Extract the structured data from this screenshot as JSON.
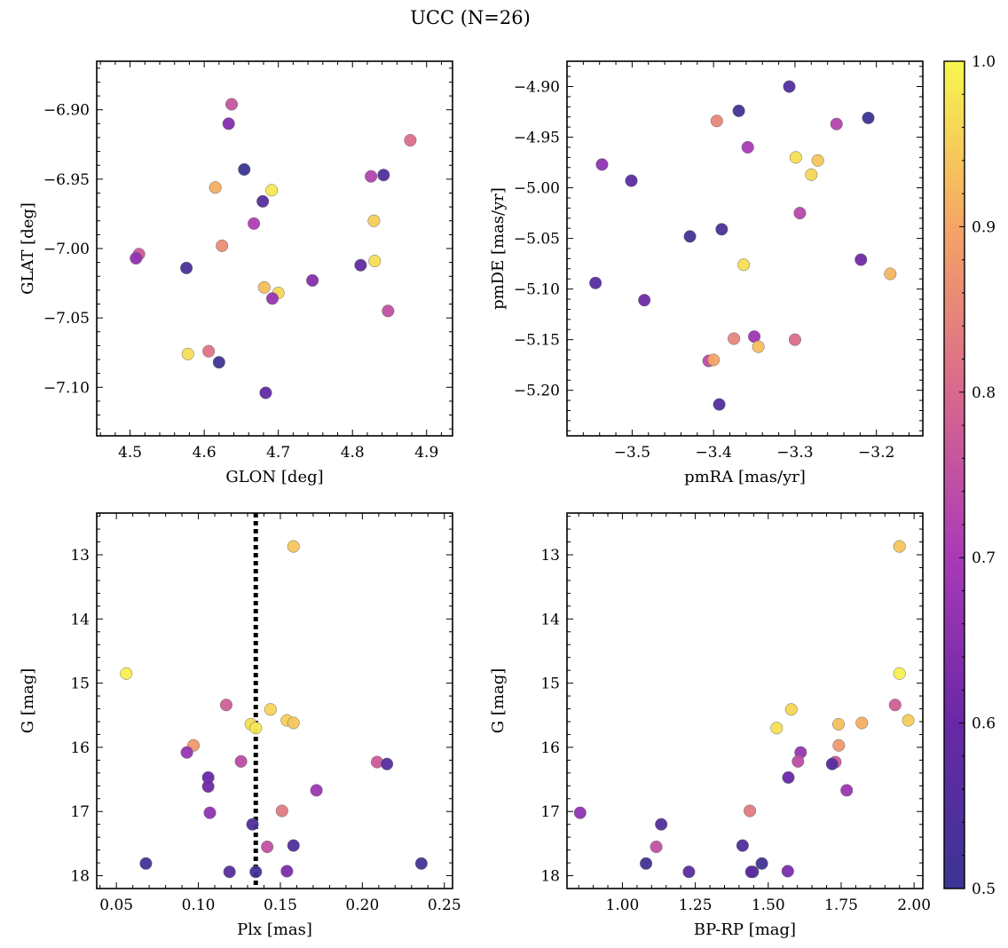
{
  "title": "UCC (N=26)",
  "colorbar": {
    "label": "",
    "range": [
      0.5,
      1.0
    ],
    "ticks": [
      "0.5",
      "0.6",
      "0.7",
      "0.8",
      "0.9",
      "1.0"
    ],
    "tick_values": [
      0.5,
      0.6,
      0.7,
      0.8,
      0.9,
      1.0
    ],
    "colormap": "plasma"
  },
  "chart_data": [
    {
      "type": "scatter",
      "title": "",
      "xlabel": "GLON [deg]",
      "ylabel": "GLAT [deg]",
      "xlim": [
        4.455,
        4.935
      ],
      "ylim": [
        -7.135,
        -6.865
      ],
      "y_inverted": false,
      "xticks": [
        4.5,
        4.6,
        4.7,
        4.8,
        4.9
      ],
      "xtick_labels": [
        "4.5",
        "4.6",
        "4.7",
        "4.8",
        "4.9"
      ],
      "yticks": [
        -6.9,
        -6.95,
        -7.0,
        -7.05,
        -7.1
      ],
      "ytick_labels": [
        "−6.90",
        "−6.95",
        "−7.00",
        "−7.05",
        "−7.10"
      ],
      "x": [
        4.637,
        4.633,
        4.878,
        4.654,
        4.842,
        4.825,
        4.615,
        4.691,
        4.679,
        4.667,
        4.829,
        4.624,
        4.512,
        4.508,
        4.576,
        4.83,
        4.811,
        4.746,
        4.681,
        4.7,
        4.692,
        4.848,
        4.606,
        4.578,
        4.62,
        4.683
      ],
      "y": [
        -6.896,
        -6.91,
        -6.922,
        -6.943,
        -6.947,
        -6.948,
        -6.956,
        -6.958,
        -6.966,
        -6.982,
        -6.98,
        -6.998,
        -7.004,
        -7.007,
        -7.014,
        -7.009,
        -7.012,
        -7.023,
        -7.028,
        -7.032,
        -7.036,
        -7.045,
        -7.074,
        -7.076,
        -7.082,
        -7.104
      ],
      "c": [
        0.76,
        0.64,
        0.81,
        0.5,
        0.55,
        0.72,
        0.91,
        0.98,
        0.56,
        0.71,
        0.95,
        0.86,
        0.77,
        0.66,
        0.53,
        0.97,
        0.58,
        0.64,
        0.93,
        0.96,
        0.67,
        0.75,
        0.82,
        0.97,
        0.51,
        0.59
      ]
    },
    {
      "type": "scatter",
      "title": "",
      "xlabel": "pmRA [mas/yr]",
      "ylabel": "pmDE [mas/yr]",
      "xlim": [
        -3.58,
        -3.143
      ],
      "ylim": [
        -5.245,
        -4.875
      ],
      "y_inverted": false,
      "xticks": [
        -3.5,
        -3.4,
        -3.3,
        -3.2
      ],
      "xtick_labels": [
        "−3.5",
        "−3.4",
        "−3.3",
        "−3.2"
      ],
      "yticks": [
        -4.9,
        -4.95,
        -5.0,
        -5.05,
        -5.1,
        -5.15,
        -5.2
      ],
      "ytick_labels": [
        "−4.90",
        "−4.95",
        "−5.00",
        "−5.05",
        "−5.10",
        "−5.15",
        "−5.20"
      ],
      "x": [
        -3.307,
        -3.369,
        -3.396,
        -3.21,
        -3.249,
        -3.358,
        -3.299,
        -3.272,
        -3.537,
        -3.28,
        -3.501,
        -3.294,
        -3.429,
        -3.39,
        -3.219,
        -3.363,
        -3.545,
        -3.183,
        -3.485,
        -3.375,
        -3.35,
        -3.3,
        -3.345,
        -3.406,
        -3.4,
        -3.393
      ],
      "y": [
        -4.9,
        -4.924,
        -4.934,
        -4.931,
        -4.937,
        -4.96,
        -4.97,
        -4.973,
        -4.977,
        -4.987,
        -4.993,
        -5.025,
        -5.048,
        -5.041,
        -5.071,
        -5.076,
        -5.094,
        -5.085,
        -5.111,
        -5.149,
        -5.147,
        -5.15,
        -5.157,
        -5.171,
        -5.17,
        -5.214
      ],
      "c": [
        0.55,
        0.51,
        0.85,
        0.5,
        0.72,
        0.7,
        0.97,
        0.94,
        0.66,
        0.96,
        0.57,
        0.73,
        0.51,
        0.53,
        0.61,
        0.97,
        0.56,
        0.92,
        0.61,
        0.85,
        0.68,
        0.81,
        0.93,
        0.74,
        0.9,
        0.55
      ]
    },
    {
      "type": "scatter",
      "title": "",
      "xlabel": "Plx [mas]",
      "ylabel": "G [mag]",
      "xlim": [
        0.038,
        0.255
      ],
      "ylim": [
        18.2,
        12.35
      ],
      "y_inverted": true,
      "vline": {
        "x": 0.135,
        "style": "dotted",
        "color": "#000000"
      },
      "xticks": [
        0.05,
        0.1,
        0.15,
        0.2,
        0.25
      ],
      "xtick_labels": [
        "0.05",
        "0.10",
        "0.15",
        "0.20",
        "0.25"
      ],
      "yticks": [
        13,
        14,
        15,
        16,
        17,
        18
      ],
      "ytick_labels": [
        "13",
        "14",
        "15",
        "16",
        "17",
        "18"
      ],
      "x": [
        0.158,
        0.056,
        0.117,
        0.144,
        0.132,
        0.135,
        0.154,
        0.158,
        0.097,
        0.093,
        0.126,
        0.209,
        0.215,
        0.106,
        0.172,
        0.106,
        0.151,
        0.107,
        0.133,
        0.142,
        0.158,
        0.068,
        0.236,
        0.119,
        0.135,
        0.154
      ],
      "y": [
        12.87,
        14.85,
        15.34,
        15.41,
        15.64,
        15.7,
        15.58,
        15.62,
        15.97,
        16.08,
        16.22,
        16.23,
        16.26,
        16.47,
        16.67,
        16.61,
        16.99,
        17.02,
        17.2,
        17.55,
        17.53,
        17.81,
        17.81,
        17.94,
        17.94,
        17.93
      ],
      "c": [
        0.94,
        0.99,
        0.78,
        0.96,
        0.97,
        0.98,
        0.95,
        0.94,
        0.88,
        0.67,
        0.74,
        0.77,
        0.56,
        0.6,
        0.68,
        0.61,
        0.83,
        0.66,
        0.55,
        0.75,
        0.54,
        0.51,
        0.52,
        0.56,
        0.51,
        0.63
      ]
    },
    {
      "type": "scatter",
      "title": "",
      "xlabel": "BP-RP [mag]",
      "ylabel": "G [mag]",
      "xlim": [
        0.81,
        2.03
      ],
      "ylim": [
        18.2,
        12.35
      ],
      "y_inverted": true,
      "xticks": [
        1.0,
        1.25,
        1.5,
        1.75,
        2.0
      ],
      "xtick_labels": [
        "1.00",
        "1.25",
        "1.50",
        "1.75",
        "2.00"
      ],
      "yticks": [
        13,
        14,
        15,
        16,
        17,
        18
      ],
      "ytick_labels": [
        "13",
        "14",
        "15",
        "16",
        "17",
        "18"
      ],
      "x": [
        1.95,
        1.95,
        1.935,
        1.579,
        1.529,
        1.741,
        1.821,
        1.98,
        1.742,
        1.611,
        1.602,
        1.73,
        1.719,
        1.569,
        1.769,
        1.437,
        0.855,
        1.133,
        1.116,
        1.412,
        1.478,
        1.081,
        1.228,
        1.447,
        1.567,
        1.442
      ],
      "y": [
        12.87,
        14.85,
        15.34,
        15.41,
        15.7,
        15.64,
        15.62,
        15.58,
        15.97,
        16.08,
        16.22,
        16.23,
        16.26,
        16.47,
        16.67,
        16.99,
        17.02,
        17.2,
        17.55,
        17.53,
        17.81,
        17.81,
        17.94,
        17.94,
        17.93,
        17.94
      ],
      "c": [
        0.94,
        0.99,
        0.78,
        0.96,
        0.97,
        0.93,
        0.91,
        0.95,
        0.88,
        0.67,
        0.74,
        0.77,
        0.56,
        0.6,
        0.68,
        0.83,
        0.66,
        0.55,
        0.75,
        0.54,
        0.51,
        0.52,
        0.56,
        0.51,
        0.63,
        0.57
      ]
    }
  ]
}
